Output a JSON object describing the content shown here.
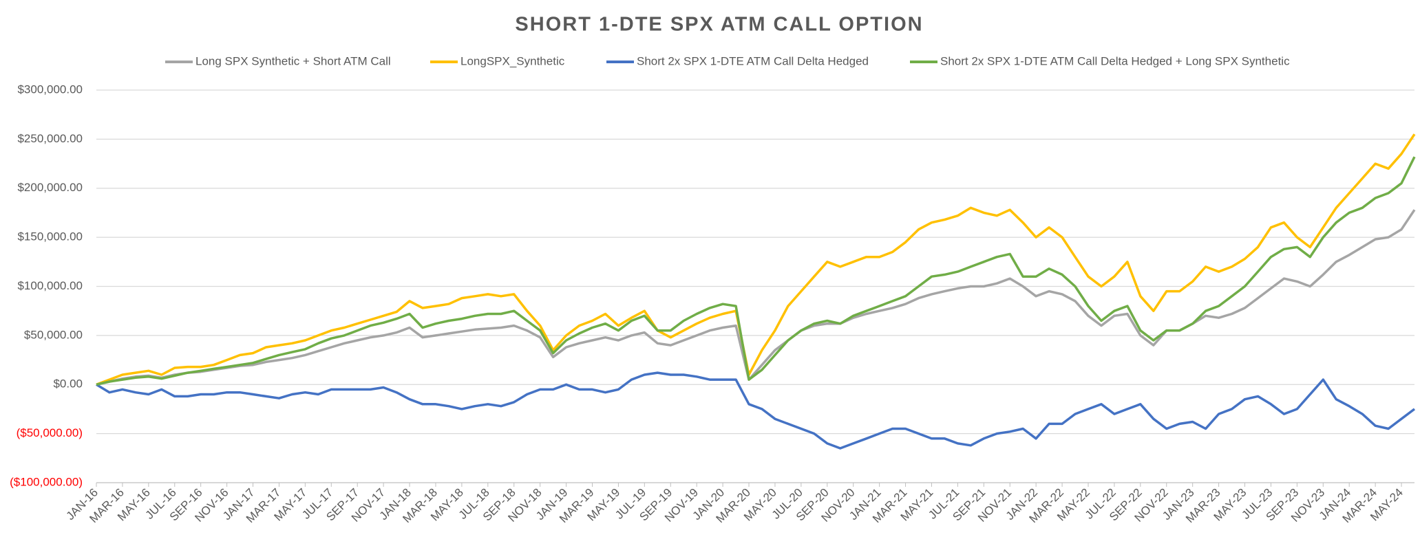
{
  "chart_data": {
    "type": "line",
    "title": "SHORT 1-DTE SPX ATM CALL OPTION",
    "categories": [
      "JAN-16",
      null,
      "MAR-16",
      null,
      "MAY-16",
      null,
      "JUL-16",
      null,
      "SEP-16",
      null,
      "NOV-16",
      null,
      "JAN-17",
      null,
      "MAR-17",
      null,
      "MAY-17",
      null,
      "JUL-17",
      null,
      "SEP-17",
      null,
      "NOV-17",
      null,
      "JAN-18",
      null,
      "MAR-18",
      null,
      "MAY-18",
      null,
      "JUL-18",
      null,
      "SEP-18",
      null,
      "NOV-18",
      null,
      "JAN-19",
      null,
      "MAR-19",
      null,
      "MAY-19",
      null,
      "JUL-19",
      null,
      "SEP-19",
      null,
      "NOV-19",
      null,
      "JAN-20",
      null,
      "MAR-20",
      null,
      "MAY-20",
      null,
      "JUL-20",
      null,
      "SEP-20",
      null,
      "NOV-20",
      null,
      "JAN-21",
      null,
      "MAR-21",
      null,
      "MAY-21",
      null,
      "JUL-21",
      null,
      "SEP-21",
      null,
      "NOV-21",
      null,
      "JAN-22",
      null,
      "MAR-22",
      null,
      "MAY-22",
      null,
      "JUL-22",
      null,
      "SEP-22",
      null,
      "NOV-22",
      null,
      "JAN-23",
      null,
      "MAR-23",
      null,
      "MAY-23",
      null,
      "JUL-23",
      null,
      "SEP-23",
      null,
      "NOV-23",
      null,
      "JAN-24",
      null,
      "MAR-24",
      null,
      "MAY-24",
      null
    ],
    "series": [
      {
        "name": "Long SPX Synthetic + Short ATM Call",
        "color": "#a5a5a5",
        "values": [
          0,
          3000,
          6000,
          8000,
          9000,
          7000,
          10000,
          12000,
          13000,
          15000,
          17000,
          19000,
          20000,
          23000,
          25000,
          27000,
          30000,
          34000,
          38000,
          42000,
          45000,
          48000,
          50000,
          53000,
          58000,
          48000,
          50000,
          52000,
          54000,
          56000,
          57000,
          58000,
          60000,
          55000,
          48000,
          28000,
          38000,
          42000,
          45000,
          48000,
          45000,
          50000,
          53000,
          42000,
          40000,
          45000,
          50000,
          55000,
          58000,
          60000,
          5000,
          20000,
          35000,
          45000,
          55000,
          60000,
          62000,
          62000,
          68000,
          72000,
          75000,
          78000,
          82000,
          88000,
          92000,
          95000,
          98000,
          100000,
          100000,
          103000,
          108000,
          100000,
          90000,
          95000,
          92000,
          85000,
          70000,
          60000,
          70000,
          72000,
          50000,
          40000,
          55000,
          55000,
          62000,
          70000,
          68000,
          72000,
          78000,
          88000,
          98000,
          108000,
          105000,
          100000,
          112000,
          125000,
          132000,
          140000,
          148000,
          150000,
          158000,
          178000
        ]
      },
      {
        "name": "LongSPX_Synthetic",
        "color": "#ffc000",
        "values": [
          0,
          5000,
          10000,
          12000,
          14000,
          10000,
          17000,
          18000,
          18000,
          20000,
          25000,
          30000,
          32000,
          38000,
          40000,
          42000,
          45000,
          50000,
          55000,
          58000,
          62000,
          66000,
          70000,
          74000,
          85000,
          78000,
          80000,
          82000,
          88000,
          90000,
          92000,
          90000,
          92000,
          75000,
          60000,
          35000,
          50000,
          60000,
          65000,
          72000,
          60000,
          68000,
          75000,
          55000,
          48000,
          55000,
          62000,
          68000,
          72000,
          75000,
          10000,
          35000,
          55000,
          80000,
          95000,
          110000,
          125000,
          120000,
          125000,
          130000,
          130000,
          135000,
          145000,
          158000,
          165000,
          168000,
          172000,
          180000,
          175000,
          172000,
          178000,
          165000,
          150000,
          160000,
          150000,
          130000,
          110000,
          100000,
          110000,
          125000,
          90000,
          75000,
          95000,
          95000,
          105000,
          120000,
          115000,
          120000,
          128000,
          140000,
          160000,
          165000,
          150000,
          140000,
          160000,
          180000,
          195000,
          210000,
          225000,
          220000,
          235000,
          255000
        ]
      },
      {
        "name": "Short 2x SPX 1-DTE ATM Call Delta Hedged",
        "color": "#4472c4",
        "values": [
          0,
          -8000,
          -5000,
          -8000,
          -10000,
          -5000,
          -12000,
          -12000,
          -10000,
          -10000,
          -8000,
          -8000,
          -10000,
          -12000,
          -14000,
          -10000,
          -8000,
          -10000,
          -5000,
          -5000,
          -5000,
          -5000,
          -3000,
          -8000,
          -15000,
          -20000,
          -20000,
          -22000,
          -25000,
          -22000,
          -20000,
          -22000,
          -18000,
          -10000,
          -5000,
          -5000,
          0,
          -5000,
          -5000,
          -8000,
          -5000,
          5000,
          10000,
          12000,
          10000,
          10000,
          8000,
          5000,
          5000,
          5000,
          -20000,
          -25000,
          -35000,
          -40000,
          -45000,
          -50000,
          -60000,
          -65000,
          -60000,
          -55000,
          -50000,
          -45000,
          -45000,
          -50000,
          -55000,
          -55000,
          -60000,
          -62000,
          -55000,
          -50000,
          -48000,
          -45000,
          -55000,
          -40000,
          -40000,
          -30000,
          -25000,
          -20000,
          -30000,
          -25000,
          -20000,
          -35000,
          -45000,
          -40000,
          -38000,
          -45000,
          -30000,
          -25000,
          -15000,
          -12000,
          -20000,
          -30000,
          -25000,
          -10000,
          5000,
          -15000,
          -22000,
          -30000,
          -42000,
          -45000,
          -35000,
          -25000
        ]
      },
      {
        "name": "Short 2x SPX 1-DTE ATM Call Delta Hedged + Long SPX Synthetic",
        "color": "#70ad47",
        "values": [
          0,
          3000,
          5000,
          7000,
          8000,
          6000,
          9000,
          12000,
          14000,
          16000,
          18000,
          20000,
          22000,
          26000,
          30000,
          33000,
          36000,
          42000,
          47000,
          50000,
          55000,
          60000,
          63000,
          67000,
          72000,
          58000,
          62000,
          65000,
          67000,
          70000,
          72000,
          72000,
          75000,
          65000,
          55000,
          32000,
          45000,
          52000,
          58000,
          62000,
          55000,
          65000,
          70000,
          55000,
          55000,
          65000,
          72000,
          78000,
          82000,
          80000,
          5000,
          15000,
          30000,
          45000,
          55000,
          62000,
          65000,
          62000,
          70000,
          75000,
          80000,
          85000,
          90000,
          100000,
          110000,
          112000,
          115000,
          120000,
          125000,
          130000,
          133000,
          110000,
          110000,
          118000,
          112000,
          100000,
          80000,
          65000,
          75000,
          80000,
          55000,
          45000,
          55000,
          55000,
          62000,
          75000,
          80000,
          90000,
          100000,
          115000,
          130000,
          138000,
          140000,
          130000,
          150000,
          165000,
          175000,
          180000,
          190000,
          195000,
          205000,
          232000
        ]
      }
    ],
    "ylim": [
      -100000,
      300000
    ],
    "yticks": [
      {
        "value": -100000,
        "label": "($100,000.00)"
      },
      {
        "value": -50000,
        "label": "($50,000.00)"
      },
      {
        "value": 0,
        "label": "$0.00"
      },
      {
        "value": 50000,
        "label": "$50,000.00"
      },
      {
        "value": 100000,
        "label": "$100,000.00"
      },
      {
        "value": 150000,
        "label": "$150,000.00"
      },
      {
        "value": 200000,
        "label": "$200,000.00"
      },
      {
        "value": 250000,
        "label": "$250,000.00"
      },
      {
        "value": 300000,
        "label": "$300,000.00"
      }
    ],
    "negative_tick_color": "#ff0000",
    "grid": true,
    "legend": "top"
  }
}
